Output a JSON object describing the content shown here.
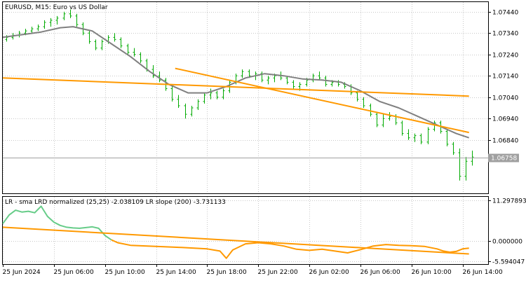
{
  "chart_data": [
    {
      "type": "line",
      "title": "EURUSD, M15:  Euro vs US Dollar",
      "yticks": [
        1.0744,
        1.0734,
        1.0724,
        1.0714,
        1.0704,
        1.0694,
        1.0684
      ],
      "ytick_labels": [
        "1.07440",
        "1.07340",
        "1.07240",
        "1.07140",
        "1.07040",
        "1.06940",
        "1.06840"
      ],
      "ylim": [
        1.0659,
        1.07485
      ],
      "xlim": [
        0,
        76
      ],
      "xticks": [
        0,
        8,
        16,
        24,
        32,
        40,
        48,
        56,
        64,
        72
      ],
      "xtick_labels": [
        "25 Jun 2024",
        "25 Jun 06:00",
        "25 Jun 10:00",
        "25 Jun 14:00",
        "25 Jun 18:00",
        "25 Jun 22:00",
        "26 Jun 02:00",
        "26 Jun 06:00",
        "26 Jun 10:00",
        "26 Jun 14:00"
      ],
      "current_price": 1.06758,
      "current_price_label": "1.06758",
      "price_bars": [
        [
          1.0731,
          1.0733,
          1.073,
          1.0732
        ],
        [
          1.0732,
          1.0734,
          1.0731,
          1.0733
        ],
        [
          1.0733,
          1.0735,
          1.0732,
          1.0734
        ],
        [
          1.0734,
          1.0736,
          1.0733,
          1.0735
        ],
        [
          1.0735,
          1.0737,
          1.0734,
          1.0736
        ],
        [
          1.0736,
          1.0738,
          1.0735,
          1.0737
        ],
        [
          1.0737,
          1.074,
          1.0736,
          1.0739
        ],
        [
          1.0739,
          1.0741,
          1.0737,
          1.074
        ],
        [
          1.074,
          1.0742,
          1.0738,
          1.0741
        ],
        [
          1.0741,
          1.0744,
          1.074,
          1.0743
        ],
        [
          1.0743,
          1.0745,
          1.0741,
          1.0742
        ],
        [
          1.0742,
          1.0743,
          1.0737,
          1.0738
        ],
        [
          1.0738,
          1.0739,
          1.0733,
          1.0734
        ],
        [
          1.0734,
          1.0735,
          1.0729,
          1.073
        ],
        [
          1.073,
          1.0731,
          1.0726,
          1.0727
        ],
        [
          1.0727,
          1.0731,
          1.0726,
          1.073
        ],
        [
          1.073,
          1.0733,
          1.0729,
          1.0732
        ],
        [
          1.0732,
          1.0734,
          1.073,
          1.0731
        ],
        [
          1.0731,
          1.0732,
          1.0727,
          1.0728
        ],
        [
          1.0728,
          1.0729,
          1.0724,
          1.0725
        ],
        [
          1.0725,
          1.0727,
          1.0723,
          1.0724
        ],
        [
          1.0724,
          1.0725,
          1.072,
          1.0721
        ],
        [
          1.0721,
          1.0722,
          1.0716,
          1.0717
        ],
        [
          1.0717,
          1.0719,
          1.0713,
          1.0714
        ],
        [
          1.0714,
          1.0716,
          1.0711,
          1.0712
        ],
        [
          1.0712,
          1.0713,
          1.0707,
          1.0708
        ],
        [
          1.0708,
          1.0709,
          1.0702,
          1.0703
        ],
        [
          1.0703,
          1.0705,
          1.0699,
          1.07
        ],
        [
          1.07,
          1.0701,
          1.0694,
          1.0696
        ],
        [
          1.0696,
          1.07,
          1.0695,
          1.0699
        ],
        [
          1.0699,
          1.0703,
          1.0698,
          1.0702
        ],
        [
          1.0702,
          1.0706,
          1.0701,
          1.0705
        ],
        [
          1.0705,
          1.0708,
          1.0703,
          1.0706
        ],
        [
          1.0706,
          1.0707,
          1.0703,
          1.0704
        ],
        [
          1.0704,
          1.0708,
          1.0703,
          1.0707
        ],
        [
          1.0707,
          1.0712,
          1.0706,
          1.0711
        ],
        [
          1.0711,
          1.0715,
          1.071,
          1.0714
        ],
        [
          1.0714,
          1.0717,
          1.0713,
          1.0716
        ],
        [
          1.0716,
          1.0717,
          1.0713,
          1.0714
        ],
        [
          1.0714,
          1.0716,
          1.0712,
          1.0715
        ],
        [
          1.0715,
          1.0716,
          1.0711,
          1.0712
        ],
        [
          1.0712,
          1.0714,
          1.071,
          1.0713
        ],
        [
          1.0713,
          1.0715,
          1.0711,
          1.0714
        ],
        [
          1.0714,
          1.0716,
          1.0712,
          1.0713
        ],
        [
          1.0713,
          1.0714,
          1.071,
          1.0711
        ],
        [
          1.0711,
          1.0712,
          1.0708,
          1.0709
        ],
        [
          1.0709,
          1.0711,
          1.0707,
          1.071
        ],
        [
          1.071,
          1.0713,
          1.0709,
          1.0712
        ],
        [
          1.0712,
          1.0715,
          1.0711,
          1.0714
        ],
        [
          1.0714,
          1.0716,
          1.0712,
          1.0713
        ],
        [
          1.0713,
          1.0714,
          1.0709,
          1.071
        ],
        [
          1.071,
          1.0712,
          1.0709,
          1.0711
        ],
        [
          1.0711,
          1.0712,
          1.0709,
          1.071
        ],
        [
          1.071,
          1.0711,
          1.0708,
          1.0709
        ],
        [
          1.0709,
          1.071,
          1.0705,
          1.0706
        ],
        [
          1.0706,
          1.0707,
          1.0702,
          1.0703
        ],
        [
          1.0703,
          1.0704,
          1.0699,
          1.07
        ],
        [
          1.07,
          1.0701,
          1.0695,
          1.0696
        ],
        [
          1.0696,
          1.0697,
          1.069,
          1.0691
        ],
        [
          1.0691,
          1.0696,
          1.069,
          1.0694
        ],
        [
          1.0694,
          1.0697,
          1.0693,
          1.0695
        ],
        [
          1.0695,
          1.0696,
          1.0691,
          1.0692
        ],
        [
          1.0692,
          1.0693,
          1.0686,
          1.0687
        ],
        [
          1.0687,
          1.0689,
          1.0684,
          1.0685
        ],
        [
          1.0685,
          1.0687,
          1.0683,
          1.0686
        ],
        [
          1.0686,
          1.0687,
          1.0682,
          1.0683
        ],
        [
          1.0683,
          1.069,
          1.0682,
          1.0689
        ],
        [
          1.0689,
          1.0693,
          1.0688,
          1.0692
        ],
        [
          1.0692,
          1.0693,
          1.0687,
          1.0688
        ],
        [
          1.0688,
          1.0689,
          1.0681,
          1.0682
        ],
        [
          1.0682,
          1.0683,
          1.0677,
          1.0678
        ],
        [
          1.0678,
          1.068,
          1.0665,
          1.0667
        ],
        [
          1.0667,
          1.0676,
          1.0665,
          1.0674
        ],
        [
          1.0674,
          1.0679,
          1.0672,
          1.0676
        ]
      ],
      "series": [
        {
          "color": "#808080",
          "x": [
            0,
            6,
            9,
            11,
            14,
            17,
            20,
            23,
            26,
            29,
            32,
            35,
            38,
            41,
            44,
            47,
            50,
            53,
            56,
            59,
            62,
            65,
            68,
            71,
            73
          ],
          "y": [
            1.0732,
            1.07345,
            1.07365,
            1.0737,
            1.0735,
            1.0729,
            1.0723,
            1.0716,
            1.071,
            1.0706,
            1.0706,
            1.0709,
            1.0713,
            1.0715,
            1.0714,
            1.07125,
            1.0712,
            1.0711,
            1.0707,
            1.0702,
            1.0699,
            1.0695,
            1.0691,
            1.0687,
            1.0685
          ]
        },
        {
          "color": "#ff9900",
          "x": [
            0,
            73
          ],
          "y": [
            1.0713,
            1.07045
          ]
        },
        {
          "color": "#ff9900",
          "x": [
            27,
            73
          ],
          "y": [
            1.07175,
            1.06875
          ]
        }
      ]
    },
    {
      "type": "line",
      "title": "LR - sma LRD normalized (25,25) -2.038109 LR slope (200) -3.731133",
      "yticks": [
        11.297893,
        0.0,
        -5.594047
      ],
      "ytick_labels": [
        "11.297893",
        "0.000000",
        "-5.594047"
      ],
      "ylim": [
        -6.4,
        12.2
      ],
      "xlim": [
        0,
        76
      ],
      "series": [
        {
          "color": "#66cc88",
          "x": [
            0,
            1,
            2,
            3,
            4,
            5,
            6,
            7,
            8,
            9,
            10,
            11,
            12,
            13,
            14,
            15,
            16,
            17
          ],
          "y": [
            4.8,
            7.2,
            8.5,
            8.0,
            8.2,
            7.8,
            9.6,
            6.8,
            5.2,
            4.3,
            3.8,
            3.6,
            3.5,
            3.7,
            3.9,
            3.5,
            1.5,
            0.3
          ]
        },
        {
          "color": "#ff9900",
          "x": [
            17,
            18,
            20,
            24,
            28,
            32,
            34,
            35,
            36,
            38,
            40,
            42,
            44,
            46,
            48,
            50,
            52,
            54,
            56,
            58,
            60,
            62,
            64,
            66,
            68,
            69,
            70,
            71,
            72,
            73
          ],
          "y": [
            0.3,
            -0.5,
            -1.2,
            -1.5,
            -1.8,
            -2.2,
            -2.8,
            -4.8,
            -2.5,
            -0.8,
            -0.5,
            -0.8,
            -1.4,
            -2.3,
            -2.6,
            -2.3,
            -2.8,
            -3.3,
            -2.4,
            -1.4,
            -1.0,
            -1.2,
            -1.3,
            -1.5,
            -2.2,
            -2.8,
            -3.1,
            -2.9,
            -2.2,
            -2.0
          ]
        },
        {
          "color": "#ff9900",
          "x": [
            0,
            73
          ],
          "y": [
            3.8,
            -3.6
          ]
        }
      ]
    }
  ]
}
